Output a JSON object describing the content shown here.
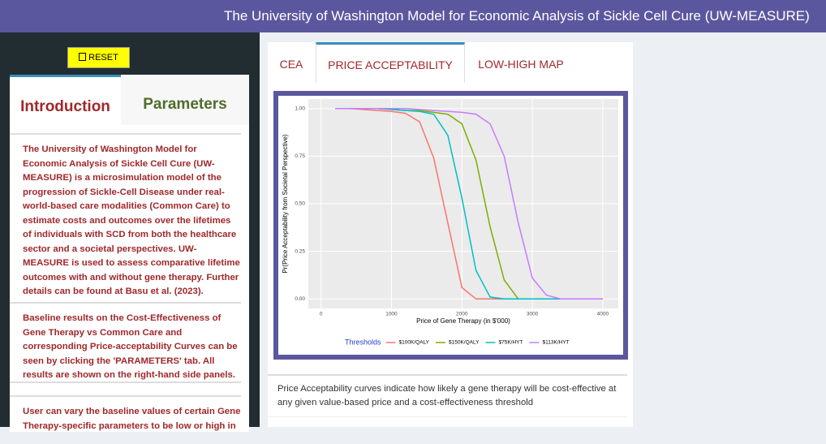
{
  "header": {
    "title": "The University of Washington Model for Economic Analysis of Sickle Cell Cure (UW-MEASURE)"
  },
  "sidebar": {
    "reset": "RESET",
    "tabs": [
      "Introduction",
      "Parameters"
    ],
    "paragraphs": [
      "The University of Washington Model for Economic Analysis of Sickle Cell Cure (UW-MEASURE) is a microsimulation model of the progression of Sickle-Cell Disease under real-world-based care modalities (Common Care) to estimate costs and outcomes over the lifetimes of individuals with SCD from both the healthcare sector and a societal perspectives. UW-MEASURE is used to assess comparative lifetime outcomes with and without gene therapy. Further details can be found at Basu et al. (2023).",
      "Baseline results on the Cost-Effectiveness of Gene Therapy vs Common Care and corresponding Price-acceptability Curves can be seen by clicking the 'PARAMETERS' tab. All results are shown on the right-hand side panels.",
      "User can vary the baseline values of certain Gene Therapy-specific parameters to be low or high in"
    ]
  },
  "main": {
    "tabs": [
      "CEA",
      "PRICE ACCEPTABILITY",
      "LOW-HIGH MAP"
    ],
    "caption": "Price Acceptability curves indicate how likely a gene therapy will be cost-effective at any given value-based price and a cost-effectiveness threshold"
  },
  "chart_data": {
    "type": "line",
    "xlabel": "Price of Gene Therapy (in $'000)",
    "ylabel": "Pr(Price Acceptability from Societal Perspective)",
    "legend_title": "Thresholds",
    "x": [
      200,
      400,
      600,
      800,
      1000,
      1200,
      1400,
      1600,
      1800,
      2000,
      2200,
      2400,
      2600,
      2800,
      3000,
      3200,
      3400,
      3600,
      3800,
      4000
    ],
    "series": [
      {
        "name": "$100K/QALY",
        "color": "#f8766d",
        "values": [
          1,
          1,
          0.995,
          0.99,
          0.985,
          0.975,
          0.93,
          0.74,
          0.4,
          0.06,
          0,
          0,
          0,
          0,
          0,
          0,
          0,
          0,
          0,
          0
        ]
      },
      {
        "name": "$150K/QALY",
        "color": "#7cae00",
        "values": [
          1,
          1,
          1,
          1,
          0.995,
          0.99,
          0.99,
          0.98,
          0.97,
          0.92,
          0.73,
          0.38,
          0.1,
          0,
          0,
          0,
          0,
          0,
          0,
          0
        ]
      },
      {
        "name": "$75K/HYT",
        "color": "#00bfc4",
        "values": [
          1,
          1,
          1,
          1,
          0.995,
          0.99,
          0.985,
          0.97,
          0.86,
          0.53,
          0.15,
          0.01,
          0,
          0,
          0,
          0,
          0,
          0,
          0,
          0
        ]
      },
      {
        "name": "$113K/HYT",
        "color": "#c77cff",
        "values": [
          1,
          1,
          1,
          1,
          1,
          1,
          0.995,
          0.99,
          0.985,
          0.98,
          0.97,
          0.92,
          0.75,
          0.4,
          0.11,
          0.02,
          0,
          0,
          0,
          0
        ]
      }
    ],
    "xlim": [
      -180,
      4220
    ],
    "ylim": [
      -0.05,
      1.05
    ],
    "xticks": [
      0,
      1000,
      2000,
      3000,
      4000
    ],
    "yticks": [
      {
        "value": 0,
        "label": "0.00"
      },
      {
        "value": 0.25,
        "label": "0.25"
      },
      {
        "value": 0.5,
        "label": "0.50"
      },
      {
        "value": 0.75,
        "label": "0.75"
      },
      {
        "value": 1,
        "label": "1.00"
      }
    ],
    "grid": true
  }
}
